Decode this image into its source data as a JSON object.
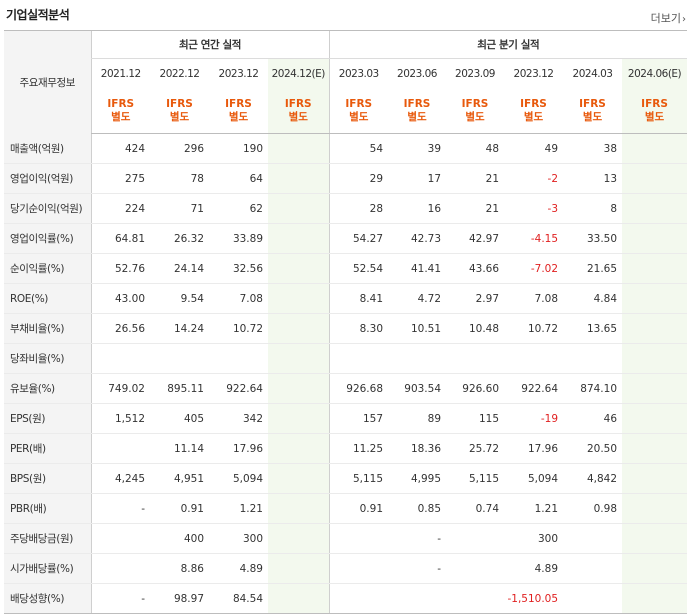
{
  "title": "기업실적분석",
  "more_label": "더보기",
  "header": {
    "row_label": "주요재무정보",
    "annual_group": "최근 연간 실적",
    "quarter_group": "최근 분기 실적",
    "periods": [
      "2021.12",
      "2022.12",
      "2023.12",
      "2024.12(E)",
      "2023.03",
      "2023.06",
      "2023.09",
      "2023.12",
      "2024.03",
      "2024.06(E)"
    ],
    "ifrs_line1": "IFRS",
    "ifrs_line2": "별도"
  },
  "rows": [
    {
      "label": "매출액(억원)",
      "values": [
        "424",
        "296",
        "190",
        "",
        "54",
        "39",
        "48",
        "49",
        "38",
        ""
      ]
    },
    {
      "label": "영업이익(억원)",
      "values": [
        "275",
        "78",
        "64",
        "",
        "29",
        "17",
        "21",
        "-2",
        "13",
        ""
      ]
    },
    {
      "label": "당기순이익(억원)",
      "values": [
        "224",
        "71",
        "62",
        "",
        "28",
        "16",
        "21",
        "-3",
        "8",
        ""
      ]
    },
    {
      "label": "영업이익률(%)",
      "values": [
        "64.81",
        "26.32",
        "33.89",
        "",
        "54.27",
        "42.73",
        "42.97",
        "-4.15",
        "33.50",
        ""
      ]
    },
    {
      "label": "순이익률(%)",
      "values": [
        "52.76",
        "24.14",
        "32.56",
        "",
        "52.54",
        "41.41",
        "43.66",
        "-7.02",
        "21.65",
        ""
      ]
    },
    {
      "label": "ROE(%)",
      "values": [
        "43.00",
        "9.54",
        "7.08",
        "",
        "8.41",
        "4.72",
        "2.97",
        "7.08",
        "4.84",
        ""
      ]
    },
    {
      "label": "부채비율(%)",
      "values": [
        "26.56",
        "14.24",
        "10.72",
        "",
        "8.30",
        "10.51",
        "10.48",
        "10.72",
        "13.65",
        ""
      ]
    },
    {
      "label": "당좌비율(%)",
      "values": [
        "",
        "",
        "",
        "",
        "",
        "",
        "",
        "",
        "",
        ""
      ]
    },
    {
      "label": "유보율(%)",
      "values": [
        "749.02",
        "895.11",
        "922.64",
        "",
        "926.68",
        "903.54",
        "926.60",
        "922.64",
        "874.10",
        ""
      ]
    },
    {
      "label": "EPS(원)",
      "values": [
        "1,512",
        "405",
        "342",
        "",
        "157",
        "89",
        "115",
        "-19",
        "46",
        ""
      ]
    },
    {
      "label": "PER(배)",
      "values": [
        "",
        "11.14",
        "17.96",
        "",
        "11.25",
        "18.36",
        "25.72",
        "17.96",
        "20.50",
        ""
      ]
    },
    {
      "label": "BPS(원)",
      "values": [
        "4,245",
        "4,951",
        "5,094",
        "",
        "5,115",
        "4,995",
        "5,115",
        "5,094",
        "4,842",
        ""
      ]
    },
    {
      "label": "PBR(배)",
      "values": [
        "-",
        "0.91",
        "1.21",
        "",
        "0.91",
        "0.85",
        "0.74",
        "1.21",
        "0.98",
        ""
      ]
    },
    {
      "label": "주당배당금(원)",
      "values": [
        "",
        "400",
        "300",
        "",
        "",
        "-",
        "",
        "300",
        "",
        ""
      ]
    },
    {
      "label": "시가배당률(%)",
      "values": [
        "",
        "8.86",
        "4.89",
        "",
        "",
        "-",
        "",
        "4.89",
        "",
        ""
      ]
    },
    {
      "label": "배당성향(%)",
      "values": [
        "-",
        "98.97",
        "84.54",
        "",
        "",
        "",
        "",
        "-1,510.05",
        "",
        ""
      ]
    }
  ],
  "colors": {
    "ifrs": "#e8590c",
    "negative": "#e02020",
    "estimate_bg": "#f3f9ee",
    "header_bg": "#f4f4f4"
  }
}
